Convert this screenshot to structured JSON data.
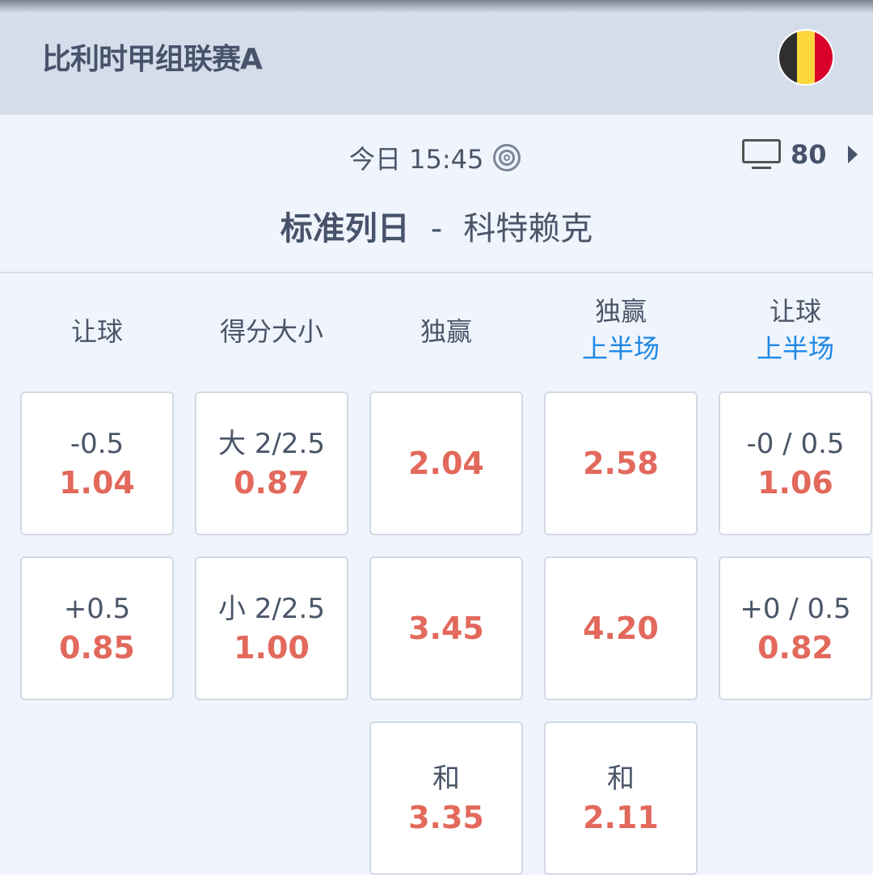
{
  "header": {
    "league": "比利时甲组联赛A",
    "flag_colors": [
      "#2f2f2f",
      "#fdd83d",
      "#d9002b"
    ]
  },
  "match": {
    "time": "今日 15:45",
    "tv_count": "80",
    "home": "标准列日",
    "separator": "-",
    "away": "科特赖克"
  },
  "columns": [
    {
      "title": "让球",
      "sub": ""
    },
    {
      "title": "得分大小",
      "sub": ""
    },
    {
      "title": "独赢",
      "sub": ""
    },
    {
      "title": "独赢",
      "sub": "上半场"
    },
    {
      "title": "让球",
      "sub": "上半场"
    }
  ],
  "cells": [
    [
      {
        "label": "-0.5",
        "odd": "1.04"
      },
      {
        "label": "+0.5",
        "odd": "0.85"
      }
    ],
    [
      {
        "label": "大 2/2.5",
        "odd": "0.87"
      },
      {
        "label": "小 2/2.5",
        "odd": "1.00"
      }
    ],
    [
      {
        "label": "",
        "odd": "2.04"
      },
      {
        "label": "",
        "odd": "3.45"
      },
      {
        "label": "和",
        "odd": "3.35"
      }
    ],
    [
      {
        "label": "",
        "odd": "2.58"
      },
      {
        "label": "",
        "odd": "4.20"
      },
      {
        "label": "和",
        "odd": "2.11"
      }
    ],
    [
      {
        "label": "-0 / 0.5",
        "odd": "1.06"
      },
      {
        "label": "+0 / 0.5",
        "odd": "0.82"
      }
    ]
  ],
  "colors": {
    "odd": "#e2695c",
    "accent": "#1e88e5"
  }
}
